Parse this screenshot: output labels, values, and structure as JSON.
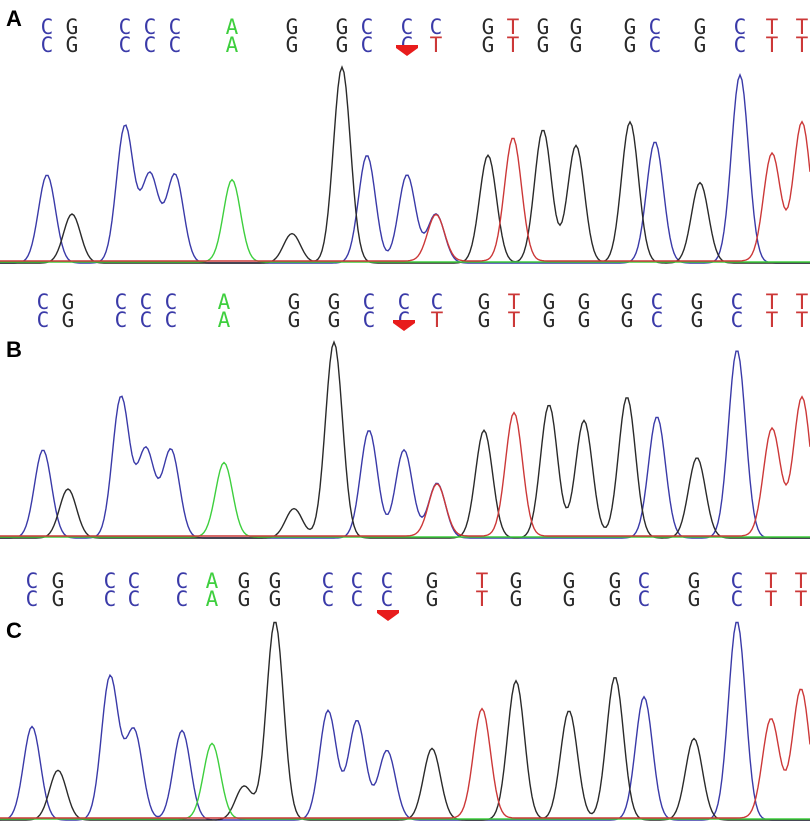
{
  "colors": {
    "C": "#3a3aa8",
    "G": "#2a2a2a",
    "A": "#3ecf3e",
    "T": "#cc3838",
    "marker": "#e81c1c"
  },
  "panels": [
    {
      "label": "A",
      "rows": [
        [
          "C",
          "G",
          "C",
          "C",
          "C",
          "A",
          "G",
          "G",
          "C",
          "C",
          "C",
          "G",
          "T",
          "G",
          "G",
          "G",
          "C",
          "G",
          "C",
          "T",
          "T"
        ],
        [
          "C",
          "G",
          "C",
          "C",
          "C",
          "A",
          "G",
          "G",
          "C",
          "C",
          "T",
          "G",
          "T",
          "G",
          "G",
          "G",
          "C",
          "G",
          "C",
          "T",
          "T"
        ]
      ]
    },
    {
      "label": "B",
      "rows": [
        [
          "C",
          "G",
          "C",
          "C",
          "C",
          "A",
          "G",
          "G",
          "C",
          "C",
          "C",
          "G",
          "T",
          "G",
          "G",
          "G",
          "C",
          "G",
          "C",
          "T",
          "T"
        ],
        [
          "C",
          "G",
          "C",
          "C",
          "C",
          "A",
          "G",
          "G",
          "C",
          "C",
          "T",
          "G",
          "T",
          "G",
          "G",
          "G",
          "C",
          "G",
          "C",
          "T",
          "T"
        ]
      ]
    },
    {
      "label": "C",
      "rows": [
        [
          "C",
          "G",
          "C",
          "C",
          "C",
          "A",
          "G",
          "G",
          "C",
          "C",
          "C",
          "G",
          "T",
          "G",
          "G",
          "G",
          "C",
          "G",
          "C",
          "T",
          "T"
        ],
        [
          "C",
          "G",
          "C",
          "C",
          "C",
          "A",
          "G",
          "G",
          "C",
          "C",
          "C",
          "G",
          "T",
          "G",
          "G",
          "G",
          "C",
          "G",
          "C",
          "T",
          "T"
        ]
      ]
    }
  ]
}
